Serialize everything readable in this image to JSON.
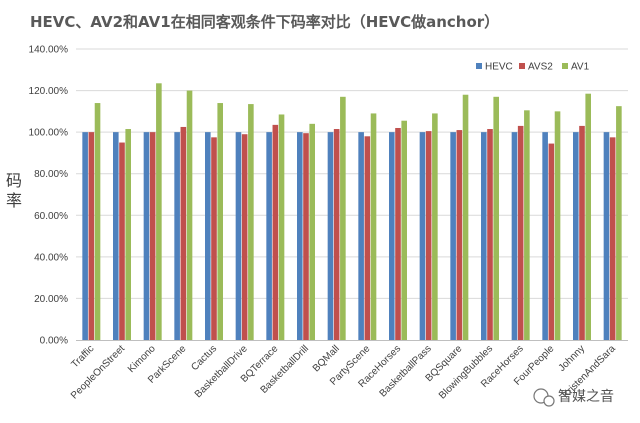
{
  "chart_data": {
    "type": "bar",
    "title": "HEVC、AV2和AV1在相同客观条件下码率对比（HEVC做anchor）",
    "ylabel": "码率",
    "xlabel": "",
    "ylim": [
      0,
      140
    ],
    "yticks": [
      "0.00%",
      "20.00%",
      "40.00%",
      "60.00%",
      "80.00%",
      "100.00%",
      "120.00%",
      "140.00%"
    ],
    "grid": true,
    "legend_position": "top-right",
    "categories": [
      "Traffic",
      "PeopleOnStreet",
      "Kimono",
      "ParkScene",
      "Cactus",
      "BasketballDrive",
      "BQTerrace",
      "BasketballDrill",
      "BQMall",
      "PartyScene",
      "RaceHorses",
      "BasketballPass",
      "BQSquare",
      "BlowingBubbles",
      "RaceHorses",
      "FourPeople",
      "Johnny",
      "KristenAndSara"
    ],
    "series": [
      {
        "name": "HEVC",
        "color": "#4F81BD",
        "values": [
          100,
          100,
          100,
          100,
          100,
          100,
          100,
          100,
          100,
          100,
          100,
          100,
          100,
          100,
          100,
          100,
          100,
          100
        ]
      },
      {
        "name": "AVS2",
        "color": "#C0504D",
        "values": [
          100,
          95,
          100,
          102.5,
          97.5,
          99,
          103.5,
          99.5,
          101.5,
          98,
          102,
          100.5,
          101,
          101.5,
          103,
          94.5,
          103,
          97.5
        ]
      },
      {
        "name": "AV1",
        "color": "#9BBB59",
        "values": [
          114,
          101.5,
          123.5,
          120,
          114,
          113.5,
          108.5,
          104,
          117,
          109,
          105.5,
          109,
          118,
          117,
          110.5,
          110,
          118.5,
          112.5
        ]
      }
    ]
  },
  "watermark": {
    "text": "智媒之音",
    "icon": "wechat-icon"
  }
}
